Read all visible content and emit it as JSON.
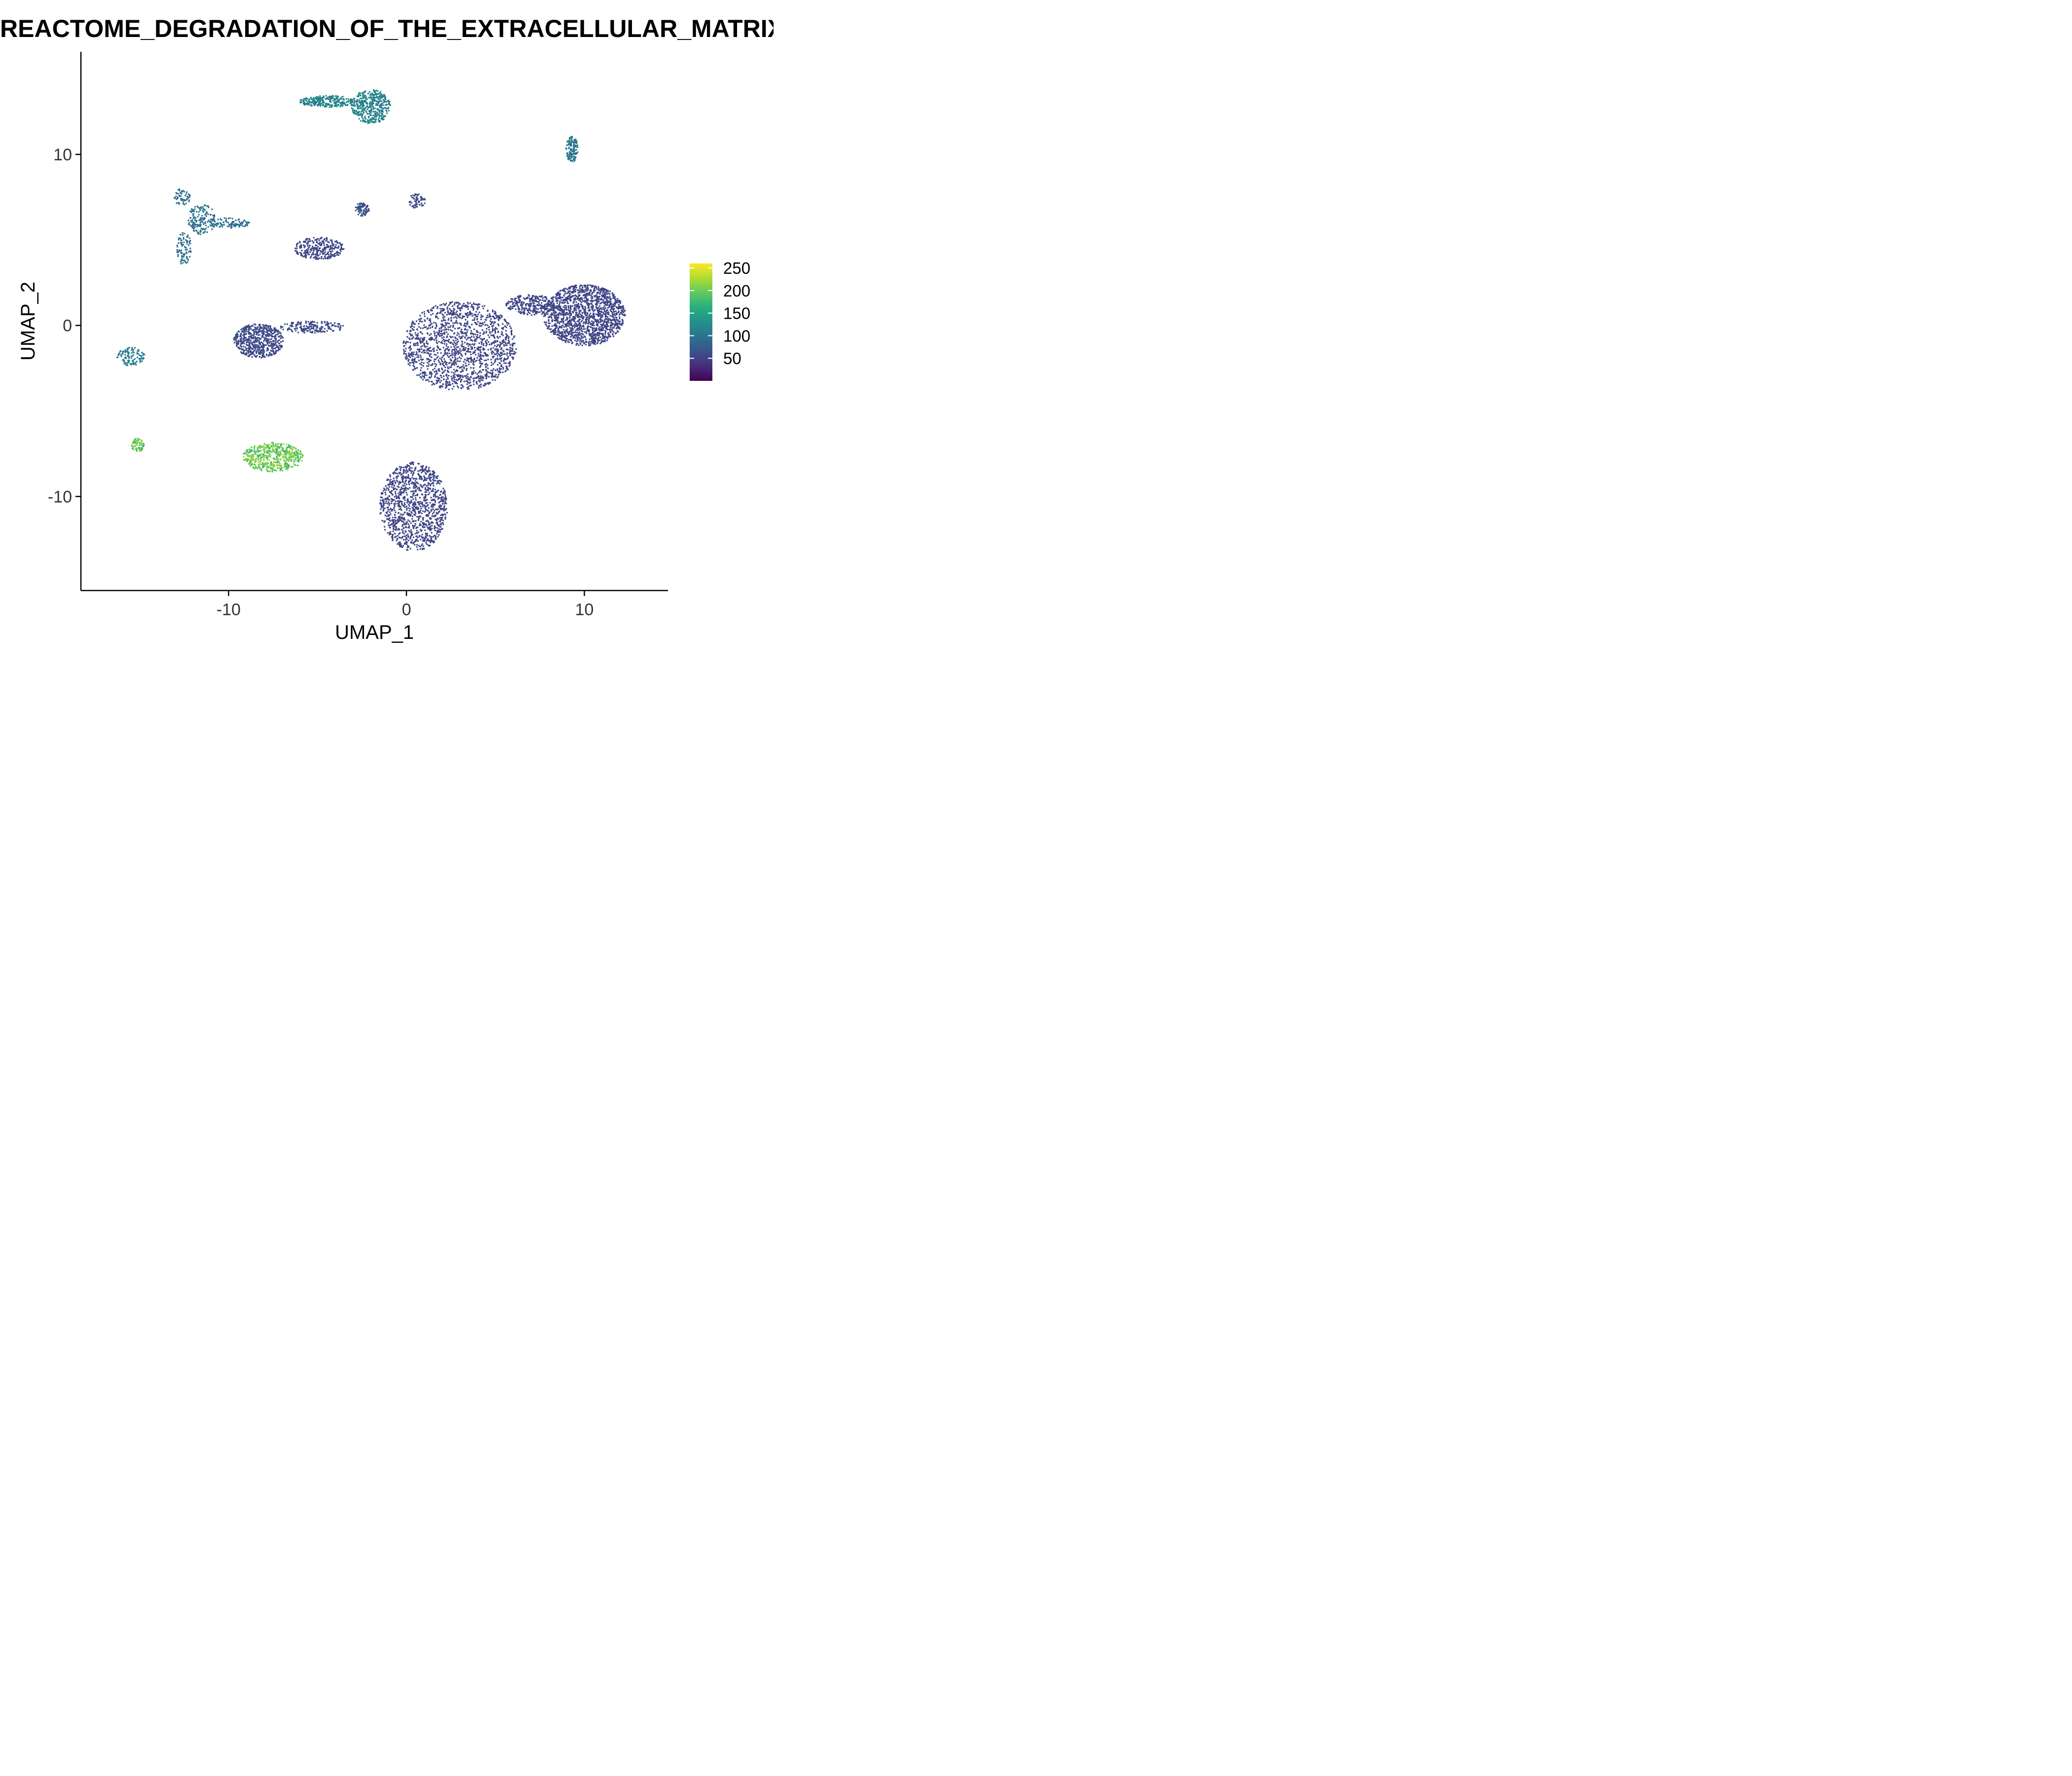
{
  "chart_data": {
    "type": "scatter",
    "title": "REACTOME_DEGRADATION_OF_THE_EXTRACELLULAR_MATRIX_score",
    "xlabel": "UMAP_1",
    "ylabel": "UMAP_2",
    "xlim": [
      -18.3,
      14.7
    ],
    "ylim": [
      -15.5,
      16.0
    ],
    "xticks": [
      -10,
      0,
      10
    ],
    "xtick_labels": [
      "-10",
      "0",
      "10"
    ],
    "yticks": [
      -10,
      0,
      10
    ],
    "ytick_labels": [
      "-10",
      "0",
      "10"
    ],
    "grid": false,
    "legend": {
      "placement": "right",
      "type": "colorbar",
      "range": [
        0,
        260
      ],
      "ticks": [
        50,
        100,
        150,
        200,
        250
      ],
      "tick_labels": [
        "50",
        "100",
        "150",
        "200",
        "250"
      ],
      "colormap": [
        "#440154",
        "#472d7b",
        "#3b528b",
        "#2c728e",
        "#21918c",
        "#28ae80",
        "#5ec962",
        "#addc30",
        "#fde725"
      ]
    },
    "clusters": [
      {
        "x": 6.4,
        "y": 1.0,
        "score": 55,
        "n": 3500,
        "note": "large central-right cluster"
      },
      {
        "x": 0.5,
        "y": -11.0,
        "score": 55,
        "n": 1200
      },
      {
        "x": -8.0,
        "y": -0.6,
        "score": 58,
        "n": 800
      },
      {
        "x": -3.0,
        "y": 13.0,
        "score": 115,
        "n": 700
      },
      {
        "x": -11.5,
        "y": 6.0,
        "score": 95,
        "n": 400
      },
      {
        "x": -4.9,
        "y": 4.5,
        "score": 55,
        "n": 300
      },
      {
        "x": -7.5,
        "y": -7.7,
        "score": 200,
        "n": 550
      },
      {
        "x": 9.3,
        "y": 10.3,
        "score": 100,
        "n": 150
      },
      {
        "x": 0.6,
        "y": 7.3,
        "score": 60,
        "n": 60
      },
      {
        "x": -2.5,
        "y": 6.8,
        "score": 65,
        "n": 80
      },
      {
        "x": -15.5,
        "y": -1.8,
        "score": 110,
        "n": 110
      },
      {
        "x": -15.1,
        "y": -7.0,
        "score": 195,
        "n": 70
      }
    ]
  }
}
